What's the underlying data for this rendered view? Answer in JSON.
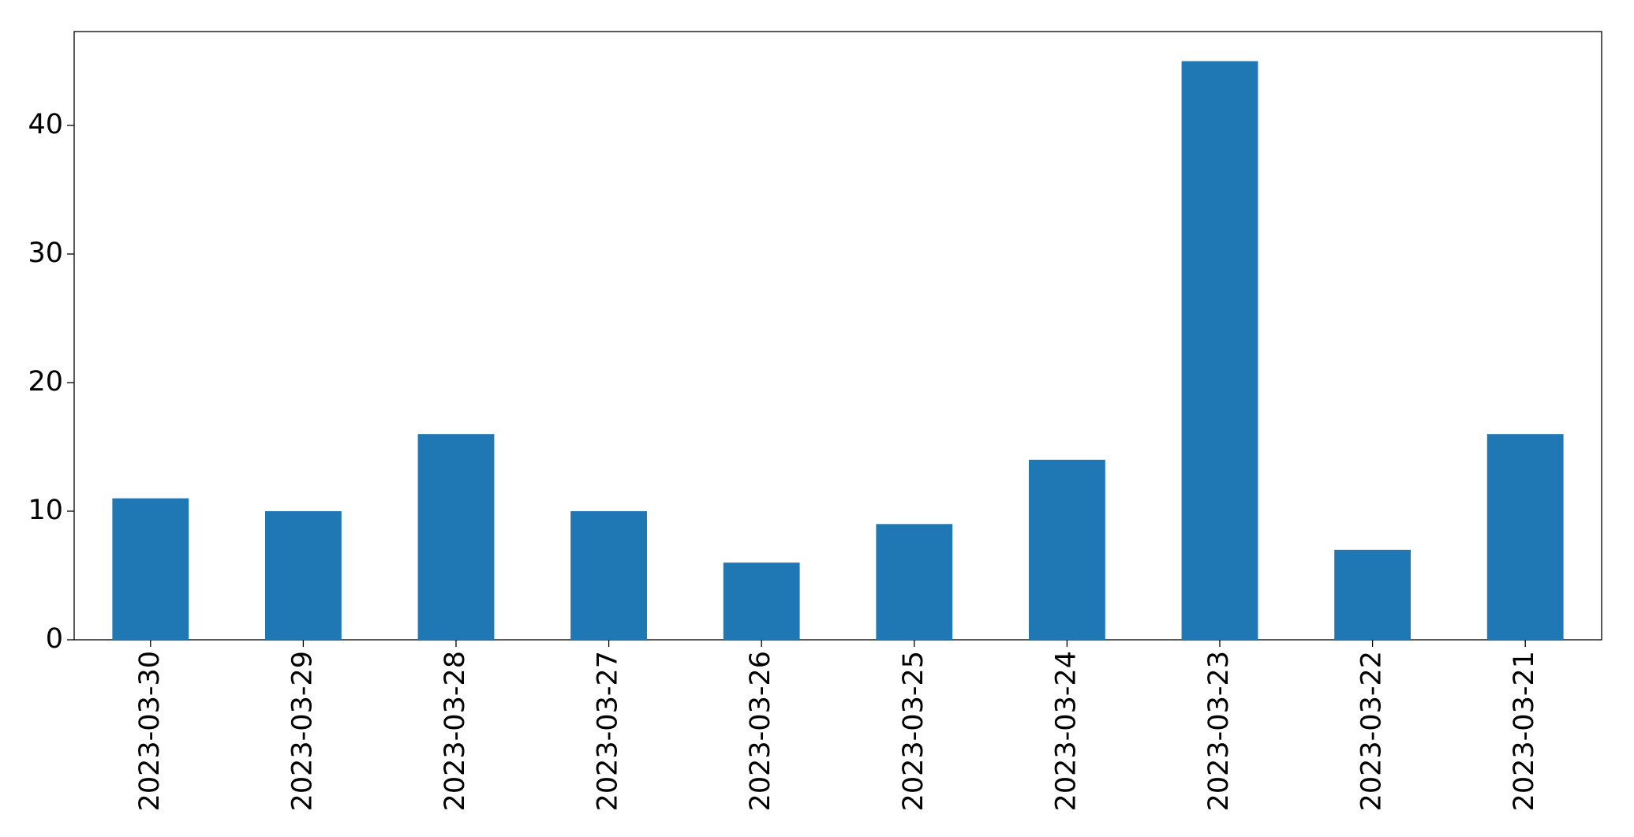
{
  "chart_data": {
    "type": "bar",
    "categories": [
      "2023-03-30",
      "2023-03-29",
      "2023-03-28",
      "2023-03-27",
      "2023-03-26",
      "2023-03-25",
      "2023-03-24",
      "2023-03-23",
      "2023-03-22",
      "2023-03-21"
    ],
    "values": [
      11,
      10,
      16,
      10,
      6,
      9,
      14,
      45,
      7,
      16
    ],
    "color": "#1f77b4",
    "ylim": [
      0,
      47.3
    ],
    "yticks": [
      0,
      10,
      20,
      30,
      40
    ],
    "grid": false
  }
}
